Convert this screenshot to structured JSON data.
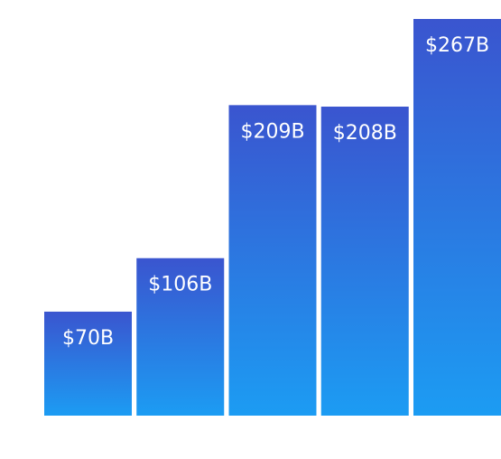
{
  "chart_data": {
    "type": "bar",
    "categories": [
      "",
      "",
      "",
      "",
      ""
    ],
    "values": [
      70,
      106,
      209,
      208,
      267
    ],
    "data_labels": [
      "$70B",
      "$106B",
      "$209B",
      "$208B",
      "$267B"
    ],
    "unit": "$B",
    "title": "",
    "xlabel": "",
    "ylabel": "",
    "ylim": [
      0,
      267
    ],
    "grid": false,
    "legend": "none",
    "colors": {
      "bar_top": "#3a55cf",
      "bar_bottom": "#1c9cf3"
    }
  }
}
